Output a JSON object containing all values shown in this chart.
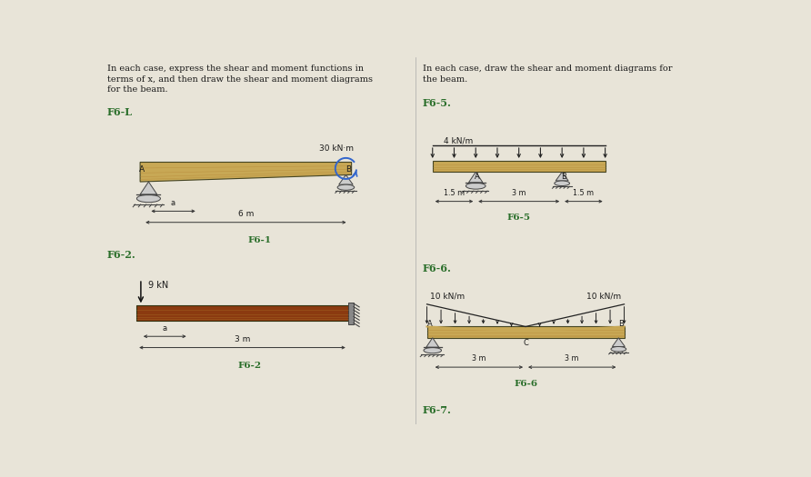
{
  "page_bg": "#e8e4d8",
  "beam_color_wood": "#c8a855",
  "beam_color_dark": "#7a4010",
  "beam_color_cantilever": "#8b3a10",
  "text_color": "#1a1a1a",
  "green_label": "#2a6e2a",
  "left_title": "In each case, express the shear and moment functions in\nterms of x, and then draw the shear and moment diagrams\nfor the beam.",
  "right_title": "In each case, draw the shear and moment diagrams for\nthe beam.",
  "f6_1_label": "F6-L",
  "f6_1_moment": "30 kN·m",
  "f6_1_span": "6 m",
  "f6_1_a_label": "a",
  "f6_1_tag": "F6-1",
  "f6_2_label": "F6-2.",
  "f6_2_force": "9 kN",
  "f6_2_span": "3 m",
  "f6_2_a_label": "a",
  "f6_2_tag": "F6-2",
  "f6_5_label": "F6-5.",
  "f6_5_dist": "4 kN/m",
  "f6_5_dim1": "1.5 m",
  "f6_5_dim2": "3 m",
  "f6_5_dim3": "1.5 m",
  "f6_5_tag": "F6-5",
  "f6_6_label": "F6-6.",
  "f6_6_dist_left": "10 kN/m",
  "f6_6_dist_right": "10 kN/m",
  "f6_6_dim1": "3 m",
  "f6_6_dim2": "3 m",
  "f6_6_tag": "F6-6",
  "f6_7_label": "F6-7."
}
